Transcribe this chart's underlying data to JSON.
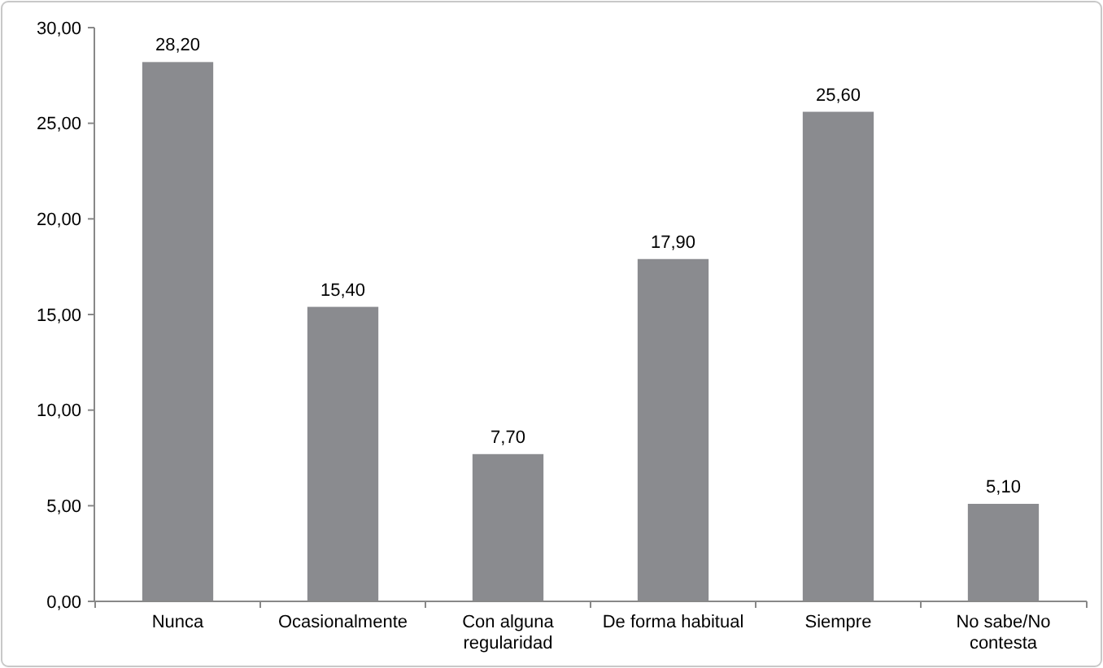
{
  "chart_data": {
    "type": "bar",
    "categories": [
      "Nunca",
      "Ocasionalmente",
      "Con alguna regularidad",
      "De forma habitual",
      "Siempre",
      "No sabe/No contesta"
    ],
    "values": [
      28.2,
      15.4,
      7.7,
      17.9,
      25.6,
      5.1
    ],
    "value_labels": [
      "28,20",
      "15,40",
      "7,70",
      "17,90",
      "25,60",
      "5,10"
    ],
    "color": "#8a8b8f",
    "ylim": [
      0,
      30
    ],
    "yticks": [
      {
        "value": 0,
        "label": "0,00"
      },
      {
        "value": 5,
        "label": "5,00"
      },
      {
        "value": 10,
        "label": "10,00"
      },
      {
        "value": 15,
        "label": "15,00"
      },
      {
        "value": 20,
        "label": "20,00"
      },
      {
        "value": 25,
        "label": "25,00"
      },
      {
        "value": 30,
        "label": "30,00"
      }
    ],
    "grid": false
  }
}
